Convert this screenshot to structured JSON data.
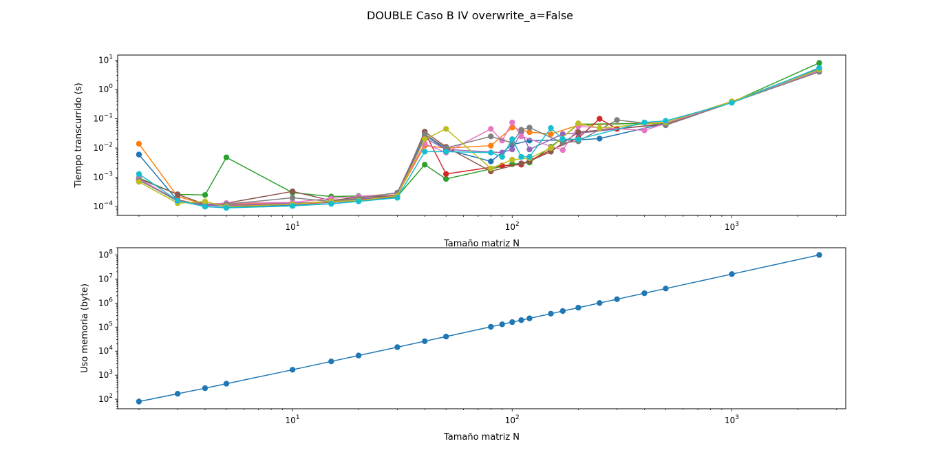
{
  "figure": {
    "title": "DOUBLE Caso B IV overwrite_a=False"
  },
  "chart_data": [
    {
      "type": "line",
      "scale": "log-log",
      "title": "",
      "xlabel": "Tamaño matriz N",
      "ylabel": "Tiempo transcurrido (s)",
      "xlim": [
        1.6,
        3300
      ],
      "ylim": [
        5e-05,
        15
      ],
      "x_ticks": [
        {
          "value": 10,
          "base": "10",
          "exp": "1"
        },
        {
          "value": 100,
          "base": "10",
          "exp": "2"
        },
        {
          "value": 1000,
          "base": "10",
          "exp": "3"
        }
      ],
      "y_ticks": [
        {
          "value": 0.0001,
          "base": "10",
          "exp": "−4"
        },
        {
          "value": 0.001,
          "base": "10",
          "exp": "−3"
        },
        {
          "value": 0.01,
          "base": "10",
          "exp": "−2"
        },
        {
          "value": 0.1,
          "base": "10",
          "exp": "−1"
        },
        {
          "value": 1,
          "base": "10",
          "exp": "0"
        },
        {
          "value": 10,
          "base": "10",
          "exp": "1"
        }
      ],
      "legend": "none",
      "grid": false,
      "series": [
        {
          "color": "#1f77b4",
          "x": [
            2,
            3,
            4,
            5,
            10,
            15,
            20,
            30,
            40,
            50,
            80,
            100,
            120,
            200,
            250,
            500,
            1000,
            2500
          ],
          "y": [
            0.006,
            0.00016,
            0.0001,
            9.5e-05,
            0.00011,
            0.000125,
            0.000155,
            0.00021,
            0.028,
            0.009,
            0.0035,
            0.013,
            0.018,
            0.019,
            0.021,
            0.07,
            0.38,
            5.2
          ]
        },
        {
          "color": "#ff7f0e",
          "x": [
            2,
            3,
            4,
            5,
            10,
            15,
            20,
            30,
            40,
            50,
            80,
            100,
            120,
            150,
            200,
            500,
            1000,
            2500
          ],
          "y": [
            0.014,
            0.00022,
            0.00012,
            0.00012,
            0.00013,
            0.00015,
            0.00018,
            0.00025,
            0.012,
            0.01,
            0.012,
            0.05,
            0.035,
            0.03,
            0.06,
            0.075,
            0.39,
            4.6
          ]
        },
        {
          "color": "#2ca02c",
          "x": [
            2,
            3,
            4,
            5,
            10,
            15,
            20,
            30,
            40,
            50,
            100,
            120,
            150,
            200,
            500,
            1000,
            2500
          ],
          "y": [
            0.00095,
            0.00026,
            0.00025,
            0.0048,
            0.0003,
            0.00022,
            0.00023,
            0.00022,
            0.0027,
            0.00088,
            0.0028,
            0.0032,
            0.011,
            0.065,
            0.07,
            0.37,
            8.1
          ]
        },
        {
          "color": "#d62728",
          "x": [
            2,
            3,
            4,
            5,
            10,
            15,
            20,
            30,
            40,
            50,
            90,
            110,
            150,
            200,
            250,
            300,
            500,
            1000,
            2500
          ],
          "y": [
            0.0008,
            0.00017,
            0.00011,
            0.00011,
            0.00012,
            0.00014,
            0.00017,
            0.00022,
            0.035,
            0.0013,
            0.0025,
            0.0027,
            0.0085,
            0.022,
            0.1,
            0.045,
            0.068,
            0.38,
            4.3
          ]
        },
        {
          "color": "#9467bd",
          "x": [
            2,
            3,
            4,
            5,
            10,
            15,
            20,
            30,
            40,
            50,
            90,
            100,
            110,
            120,
            170,
            200,
            500,
            1000,
            2500
          ],
          "y": [
            0.00085,
            0.00015,
            0.00011,
            0.00011,
            0.00013,
            0.00014,
            0.00018,
            0.00023,
            0.022,
            0.009,
            0.007,
            0.009,
            0.035,
            0.009,
            0.03,
            0.032,
            0.068,
            0.37,
            4.5
          ]
        },
        {
          "color": "#8c564b",
          "x": [
            2,
            3,
            4,
            5,
            10,
            15,
            20,
            30,
            40,
            50,
            80,
            110,
            120,
            150,
            200,
            500,
            1000,
            2500
          ],
          "y": [
            0.0009,
            0.00026,
            0.00012,
            0.00013,
            0.00033,
            0.00016,
            0.00021,
            0.00024,
            0.036,
            0.011,
            0.0016,
            0.003,
            0.0036,
            0.0075,
            0.035,
            0.065,
            0.37,
            4.1
          ]
        },
        {
          "color": "#e377c2",
          "x": [
            2,
            3,
            4,
            5,
            10,
            15,
            20,
            30,
            40,
            50,
            80,
            90,
            100,
            110,
            170,
            200,
            400,
            1000,
            2500
          ],
          "y": [
            0.0009,
            0.00016,
            0.00012,
            0.00013,
            0.00014,
            0.00019,
            0.00022,
            0.00028,
            0.014,
            0.007,
            0.045,
            0.018,
            0.075,
            0.025,
            0.0085,
            0.055,
            0.04,
            0.38,
            4.4
          ]
        },
        {
          "color": "#7f7f7f",
          "x": [
            2,
            3,
            4,
            5,
            10,
            15,
            20,
            30,
            40,
            50,
            80,
            100,
            110,
            120,
            170,
            200,
            300,
            500,
            1000,
            2500
          ],
          "y": [
            0.0008,
            0.00016,
            0.00012,
            0.00012,
            0.0002,
            0.00015,
            0.00019,
            0.0003,
            0.03,
            0.01,
            0.025,
            0.015,
            0.042,
            0.05,
            0.015,
            0.017,
            0.09,
            0.06,
            0.36,
            4.0
          ]
        },
        {
          "color": "#bcbd22",
          "x": [
            2,
            3,
            4,
            5,
            10,
            15,
            20,
            30,
            40,
            50,
            80,
            100,
            120,
            150,
            200,
            250,
            500,
            1000,
            2500
          ],
          "y": [
            0.0007,
            0.00013,
            0.00015,
            0.0001,
            0.00012,
            0.00015,
            0.00016,
            0.00023,
            0.02,
            0.045,
            0.002,
            0.004,
            0.0045,
            0.01,
            0.07,
            0.048,
            0.075,
            0.39,
            4.8
          ]
        },
        {
          "color": "#17becf",
          "x": [
            2,
            3,
            4,
            5,
            10,
            15,
            20,
            30,
            40,
            50,
            80,
            90,
            100,
            110,
            120,
            150,
            170,
            200,
            400,
            500,
            1000,
            2500
          ],
          "y": [
            0.0013,
            0.00016,
            0.0001,
            9e-05,
            0.000105,
            0.000125,
            0.00015,
            0.0002,
            0.0075,
            0.0075,
            0.007,
            0.005,
            0.02,
            0.005,
            0.005,
            0.048,
            0.02,
            0.02,
            0.075,
            0.085,
            0.35,
            5.5
          ]
        }
      ]
    },
    {
      "type": "line",
      "scale": "log-log",
      "title": "",
      "xlabel": "Tamaño matriz N",
      "ylabel": "Uso memoria (byte)",
      "xlim": [
        1.6,
        3300
      ],
      "ylim": [
        40,
        200000000.0
      ],
      "x_ticks": [
        {
          "value": 10,
          "base": "10",
          "exp": "1"
        },
        {
          "value": 100,
          "base": "10",
          "exp": "2"
        },
        {
          "value": 1000,
          "base": "10",
          "exp": "3"
        }
      ],
      "y_ticks": [
        {
          "value": 100,
          "base": "10",
          "exp": "2"
        },
        {
          "value": 1000,
          "base": "10",
          "exp": "3"
        },
        {
          "value": 10000,
          "base": "10",
          "exp": "4"
        },
        {
          "value": 100000,
          "base": "10",
          "exp": "5"
        },
        {
          "value": 1000000,
          "base": "10",
          "exp": "6"
        },
        {
          "value": 10000000,
          "base": "10",
          "exp": "7"
        },
        {
          "value": 100000000,
          "base": "10",
          "exp": "8"
        }
      ],
      "legend": "none",
      "grid": false,
      "series": [
        {
          "color": "#1f77b4",
          "x": [
            2,
            3,
            4,
            5,
            10,
            15,
            20,
            30,
            40,
            50,
            80,
            90,
            100,
            110,
            120,
            150,
            170,
            200,
            250,
            300,
            400,
            500,
            1000,
            2500
          ],
          "y": [
            80,
            168,
            288,
            440,
            1680,
            3720,
            6560,
            14640,
            25920,
            40400,
            103040,
            130320,
            160800,
            194480,
            231360,
            361200,
            463760,
            641600,
            1002000,
            1442400,
            2563200,
            4004000,
            16008000,
            100020000
          ]
        }
      ]
    }
  ]
}
